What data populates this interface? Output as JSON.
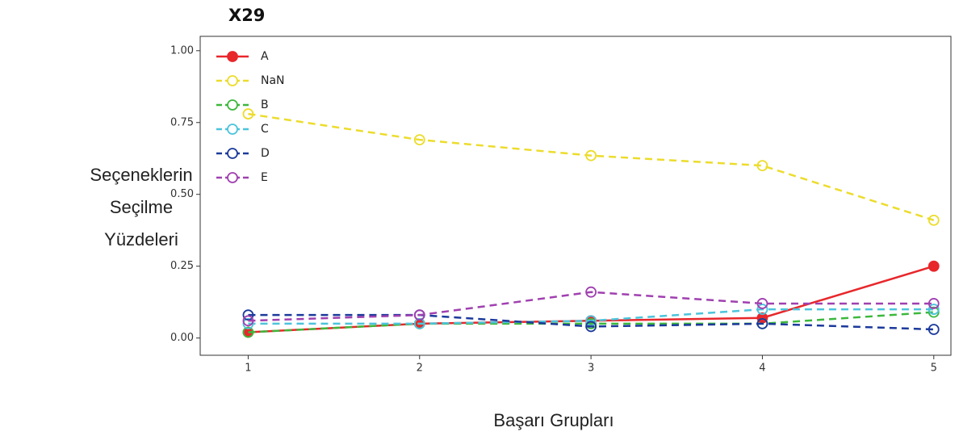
{
  "chart_data": {
    "type": "line",
    "title": "X29",
    "ylabel": [
      "Seçeneklerin",
      "Seçilme",
      "Yüzdeleri"
    ],
    "xlabel": "Başarı Grupları",
    "x": [
      1,
      2,
      3,
      4,
      5
    ],
    "series": [
      {
        "name": "A",
        "color": "#e8272b",
        "linestyle": "solid",
        "values": [
          0.02,
          0.05,
          0.06,
          0.07,
          0.25
        ]
      },
      {
        "name": "NaN",
        "color": "#ecdc2c",
        "linestyle": "dashed",
        "values": [
          0.78,
          0.69,
          0.635,
          0.6,
          0.41
        ]
      },
      {
        "name": "B",
        "color": "#3cb83c",
        "linestyle": "dashed",
        "values": [
          0.02,
          0.05,
          0.05,
          0.05,
          0.09
        ]
      },
      {
        "name": "C",
        "color": "#4cc4dc",
        "linestyle": "dashed",
        "values": [
          0.05,
          0.05,
          0.06,
          0.1,
          0.1
        ]
      },
      {
        "name": "D",
        "color": "#1c3a9c",
        "linestyle": "dashed",
        "values": [
          0.08,
          0.08,
          0.04,
          0.05,
          0.03
        ]
      },
      {
        "name": "E",
        "color": "#a040b0",
        "linestyle": "dashed",
        "values": [
          0.06,
          0.08,
          0.16,
          0.12,
          0.12
        ]
      }
    ],
    "xlim": [
      0.72,
      5.1
    ],
    "ylim": [
      -0.06,
      1.05
    ],
    "xticks": [
      1,
      2,
      3,
      4,
      5
    ],
    "yticks": [
      {
        "value": 0,
        "label": "0.00"
      },
      {
        "value": 0.25,
        "label": "0.25"
      },
      {
        "value": 0.5,
        "label": "0.50"
      },
      {
        "value": 0.75,
        "label": "0.75"
      },
      {
        "value": 1,
        "label": "1.00"
      }
    ],
    "legend": "upper-left"
  }
}
